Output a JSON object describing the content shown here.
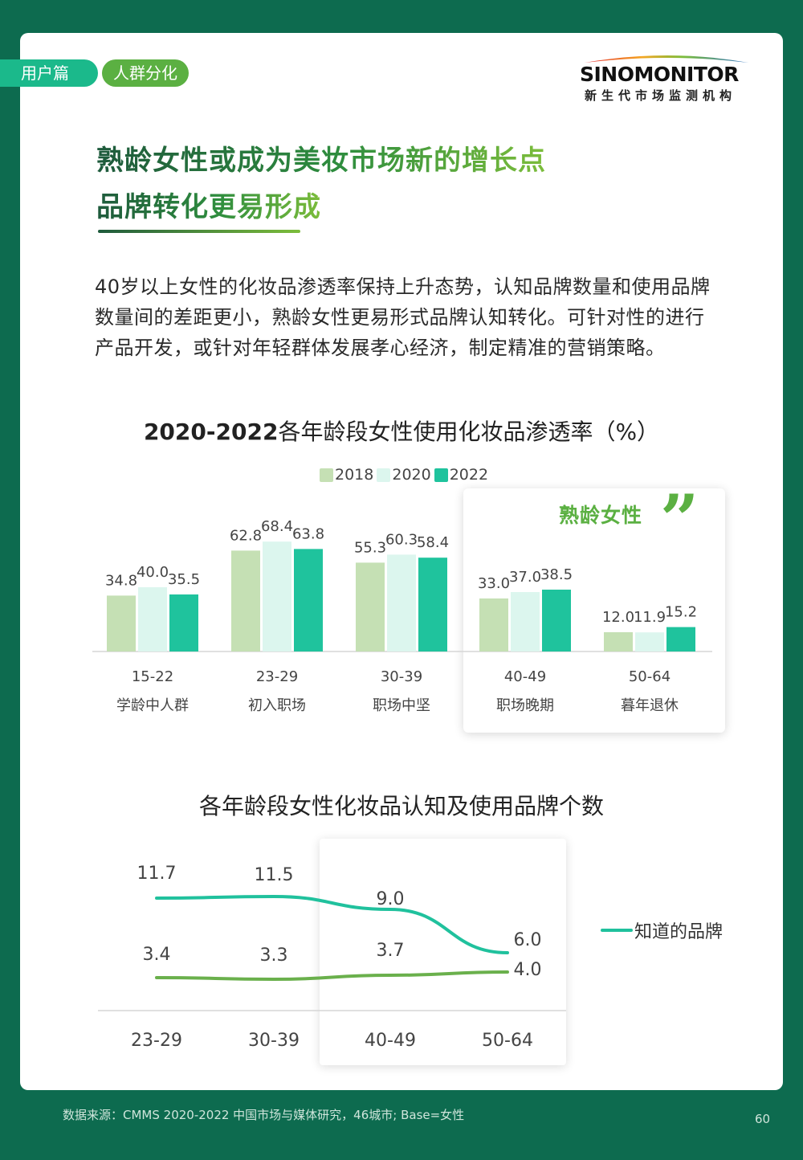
{
  "header": {
    "tag_primary": "用户篇",
    "tag_secondary": "人群分化",
    "logo_main": "SINOMONITOR",
    "logo_sub": "新生代市场监测机构"
  },
  "title": {
    "line1": "熟龄女性或成为美妆市场新的增长点",
    "line2": "品牌转化更易形成"
  },
  "intro": "40岁以上女性的化妆品渗透率保持上升态势，认知品牌数量和使用品牌数量间的差距更小，熟龄女性更易形式品牌认知转化。可针对性的进行产品开发，或针对年轻群体发展孝心经济，制定精准的营销策略。",
  "highlight_label": "熟龄女性",
  "footer": {
    "source": "数据来源：CMMS 2020-2022 中国市场与媒体研究，46城市; Base=女性",
    "page_number": "60"
  },
  "colors": {
    "s2018": "#c5e0b4",
    "s2020": "#dcf6ee",
    "s2022": "#1fc39d",
    "line_known": "#20c19d",
    "line_used": "#6ab04c",
    "page_bg": "#0d6b4f"
  },
  "chart_data": [
    {
      "type": "bar",
      "title_bold": "2020-2022",
      "title_rest": "各年龄段女性使用化妆品渗透率（%）",
      "categories": [
        "15-22",
        "23-29",
        "30-39",
        "40-49",
        "50-64"
      ],
      "category_sublabels": [
        "学龄中人群",
        "初入职场",
        "职场中坚",
        "职场晚期",
        "暮年退休"
      ],
      "series": [
        {
          "name": "2018",
          "values": [
            34.8,
            62.8,
            55.3,
            33.0,
            12.0
          ]
        },
        {
          "name": "2020",
          "values": [
            40.0,
            68.4,
            60.3,
            37.0,
            11.9
          ]
        },
        {
          "name": "2022",
          "values": [
            35.5,
            63.8,
            58.4,
            38.5,
            15.2
          ]
        }
      ],
      "legend": "top-center"
    },
    {
      "type": "line",
      "title": "各年龄段女性化妆品认知及使用品牌个数",
      "categories": [
        "23-29",
        "30-39",
        "40-49",
        "50-64"
      ],
      "series": [
        {
          "name": "知道的品牌",
          "values": [
            11.7,
            11.5,
            9.0,
            6.0
          ]
        },
        {
          "values": [
            3.4,
            3.3,
            3.7,
            4.0
          ]
        }
      ],
      "legend": "right"
    }
  ]
}
